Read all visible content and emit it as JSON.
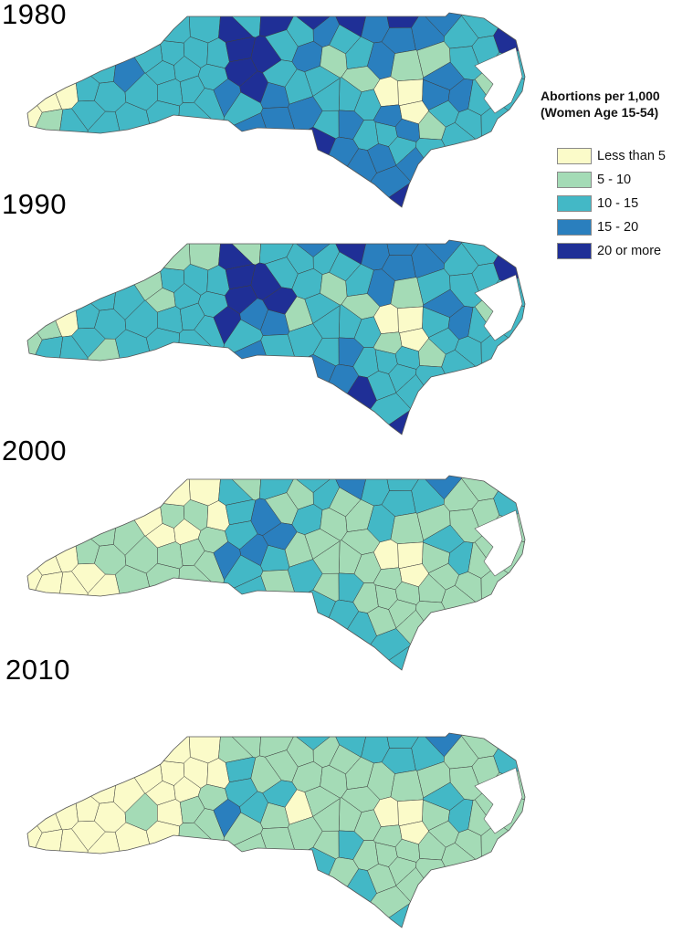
{
  "years": [
    "1980",
    "1990",
    "2000",
    "2010"
  ],
  "legend": {
    "title_line1": "Abortions per 1,000",
    "title_line2": "(Women Age 15-54)",
    "classes": [
      {
        "label": "Less than 5",
        "color": "#fbfbc9"
      },
      {
        "label": "5 - 10",
        "color": "#a4dbb6"
      },
      {
        "label": "10 - 15",
        "color": "#43b8c6"
      },
      {
        "label": "15 - 20",
        "color": "#2a7fbe"
      },
      {
        "label": "20 or more",
        "color": "#1f2f96"
      }
    ]
  },
  "maps": [
    {
      "year": "1980",
      "classes": [
        0,
        0,
        0,
        1,
        2,
        2,
        2,
        2,
        2,
        2,
        2,
        2,
        2,
        3,
        2,
        2,
        2,
        2,
        2,
        2,
        2,
        2,
        2,
        2,
        2,
        2,
        2,
        2,
        4,
        4,
        4,
        4,
        4,
        3,
        3,
        2,
        3,
        4,
        4,
        3,
        2,
        2,
        3,
        2,
        2,
        2,
        3,
        3,
        4,
        4,
        3,
        2,
        2,
        1,
        1,
        2,
        2,
        2,
        3,
        2,
        2,
        3,
        3,
        4,
        3,
        3,
        3,
        1,
        0,
        0,
        0,
        3,
        3,
        2,
        2,
        3,
        3,
        3,
        4,
        3,
        2,
        2,
        1,
        3,
        3,
        3,
        2,
        2,
        1,
        2,
        2,
        2,
        4,
        2,
        2,
        2,
        1,
        2,
        2,
        2
      ]
    },
    {
      "year": "1990",
      "classes": [
        0,
        1,
        1,
        2,
        2,
        2,
        2,
        2,
        2,
        1,
        2,
        1,
        1,
        2,
        2,
        2,
        2,
        2,
        1,
        1,
        2,
        2,
        2,
        2,
        2,
        2,
        2,
        1,
        4,
        4,
        4,
        4,
        3,
        4,
        3,
        2,
        3,
        3,
        2,
        2,
        2,
        2,
        2,
        4,
        2,
        1,
        2,
        2,
        3,
        4,
        3,
        2,
        2,
        1,
        1,
        2,
        2,
        2,
        3,
        2,
        2,
        3,
        4,
        3,
        3,
        3,
        3,
        1,
        0,
        0,
        0,
        1,
        2,
        2,
        2,
        2,
        2,
        2,
        4,
        3,
        2,
        2,
        2,
        3,
        2,
        3,
        2,
        2,
        1,
        2,
        2,
        2,
        4,
        2,
        2,
        2,
        1,
        2,
        2,
        2
      ]
    },
    {
      "year": "2000",
      "classes": [
        0,
        0,
        0,
        0,
        1,
        1,
        1,
        0,
        0,
        0,
        1,
        0,
        0,
        1,
        1,
        1,
        1,
        1,
        0,
        0,
        1,
        0,
        0,
        1,
        1,
        1,
        1,
        1,
        2,
        2,
        3,
        2,
        3,
        3,
        2,
        2,
        2,
        2,
        2,
        2,
        1,
        1,
        2,
        3,
        1,
        1,
        2,
        1,
        2,
        3,
        2,
        1,
        1,
        1,
        1,
        1,
        1,
        1,
        2,
        1,
        1,
        2,
        2,
        2,
        2,
        2,
        2,
        1,
        0,
        0,
        0,
        1,
        1,
        1,
        1,
        1,
        1,
        2,
        2,
        3,
        1,
        1,
        1,
        2,
        1,
        2,
        1,
        1,
        1,
        1,
        1,
        1,
        2,
        1,
        1,
        1,
        1,
        1,
        1,
        1
      ]
    },
    {
      "year": "2010",
      "classes": [
        0,
        0,
        0,
        0,
        0,
        0,
        0,
        0,
        0,
        0,
        0,
        0,
        0,
        0,
        1,
        0,
        0,
        0,
        0,
        0,
        0,
        0,
        0,
        1,
        1,
        1,
        1,
        1,
        1,
        2,
        1,
        2,
        2,
        3,
        1,
        1,
        1,
        2,
        1,
        1,
        1,
        1,
        1,
        2,
        1,
        0,
        1,
        1,
        2,
        2,
        2,
        1,
        1,
        1,
        1,
        1,
        1,
        1,
        2,
        1,
        1,
        1,
        2,
        2,
        2,
        2,
        1,
        1,
        0,
        0,
        0,
        1,
        1,
        1,
        1,
        1,
        1,
        1,
        2,
        3,
        1,
        1,
        1,
        2,
        1,
        2,
        1,
        1,
        1,
        1,
        1,
        1,
        2,
        1,
        1,
        1,
        1,
        1,
        1,
        1
      ]
    }
  ]
}
